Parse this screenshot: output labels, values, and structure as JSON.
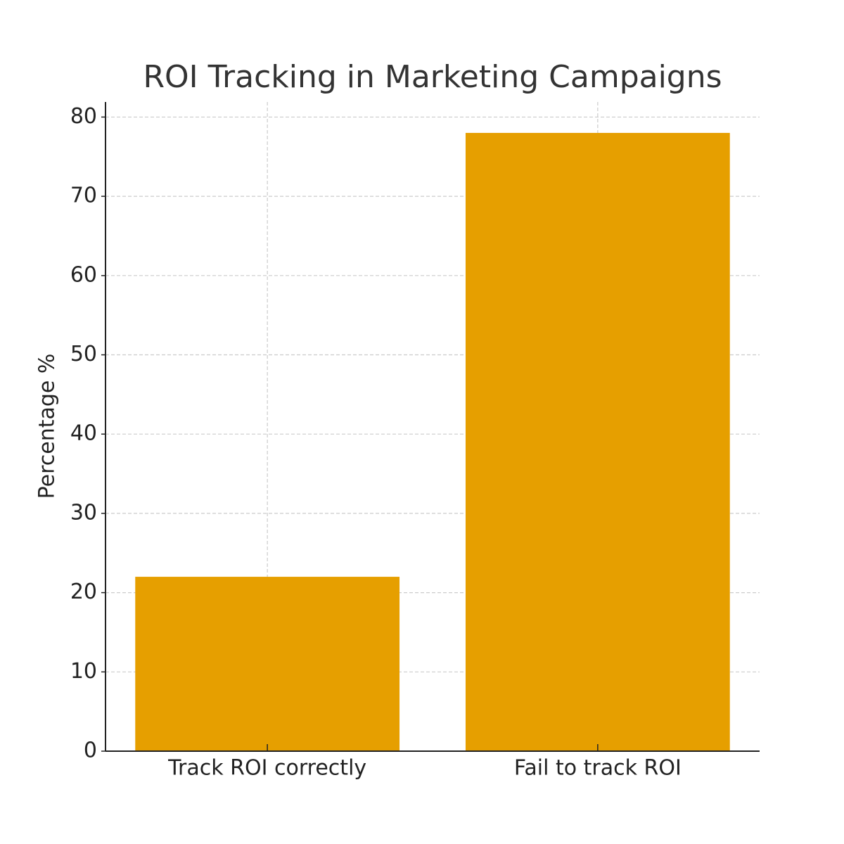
{
  "chart_data": {
    "type": "bar",
    "title": "ROI Tracking in Marketing Campaigns",
    "ylabel": "Percentage %",
    "categories": [
      "Track ROI correctly",
      "Fail to track ROI"
    ],
    "values": [
      22,
      78
    ],
    "color": "#e69f00",
    "ylim": [
      0,
      81.9
    ],
    "yticks": [
      0,
      10,
      20,
      30,
      40,
      50,
      60,
      70,
      80
    ],
    "grid": true
  }
}
